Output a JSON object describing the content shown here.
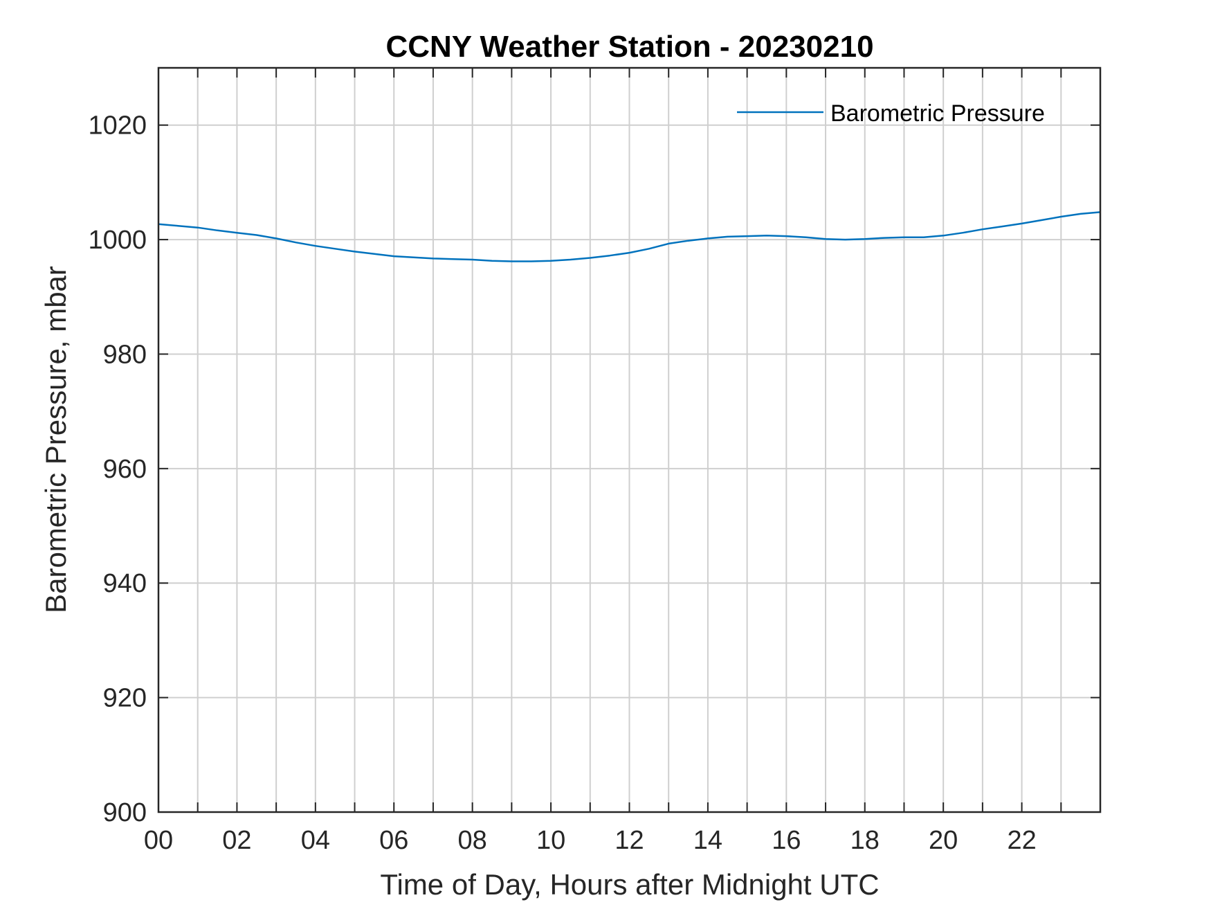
{
  "chart_data": {
    "type": "line",
    "title": "CCNY Weather Station - 20230210",
    "xlabel": "Time of Day, Hours after Midnight UTC",
    "ylabel": "Barometric Pressure, mbar",
    "xlim": [
      0,
      24
    ],
    "ylim": [
      900,
      1030
    ],
    "grid": true,
    "legend_position": "top-right",
    "x_ticks": [
      0,
      2,
      4,
      6,
      8,
      10,
      12,
      14,
      16,
      18,
      20,
      22
    ],
    "x_tick_labels": [
      "00",
      "02",
      "04",
      "06",
      "08",
      "10",
      "12",
      "14",
      "16",
      "18",
      "20",
      "22"
    ],
    "x_minor_grid": [
      1,
      3,
      5,
      7,
      9,
      11,
      13,
      15,
      17,
      19,
      21,
      23
    ],
    "y_ticks": [
      900,
      920,
      940,
      960,
      980,
      1000,
      1020
    ],
    "y_tick_labels": [
      "900",
      "920",
      "940",
      "960",
      "980",
      "1000",
      "1020"
    ],
    "series": [
      {
        "name": "Barometric Pressure",
        "color": "#0072BD",
        "x": [
          0,
          0.5,
          1,
          1.5,
          2,
          2.5,
          3,
          3.5,
          4,
          4.5,
          5,
          5.5,
          6,
          6.5,
          7,
          7.5,
          8,
          8.5,
          9,
          9.5,
          10,
          10.5,
          11,
          11.5,
          12,
          12.5,
          13,
          13.5,
          14,
          14.5,
          15,
          15.5,
          16,
          16.5,
          17,
          17.5,
          18,
          18.5,
          19,
          19.5,
          20,
          20.5,
          21,
          21.5,
          22,
          22.5,
          23,
          23.5,
          24
        ],
        "values": [
          1002.7,
          1002.4,
          1002.1,
          1001.6,
          1001.2,
          1000.8,
          1000.2,
          999.5,
          998.9,
          998.4,
          997.9,
          997.5,
          997.1,
          996.9,
          996.7,
          996.6,
          996.5,
          996.3,
          996.2,
          996.2,
          996.3,
          996.5,
          996.8,
          997.2,
          997.7,
          998.4,
          999.3,
          999.8,
          1000.2,
          1000.5,
          1000.6,
          1000.7,
          1000.6,
          1000.4,
          1000.1,
          1000.0,
          1000.1,
          1000.3,
          1000.4,
          1000.4,
          1000.7,
          1001.2,
          1001.8,
          1002.3,
          1002.8,
          1003.4,
          1004.0,
          1004.5,
          1004.8
        ]
      }
    ]
  }
}
